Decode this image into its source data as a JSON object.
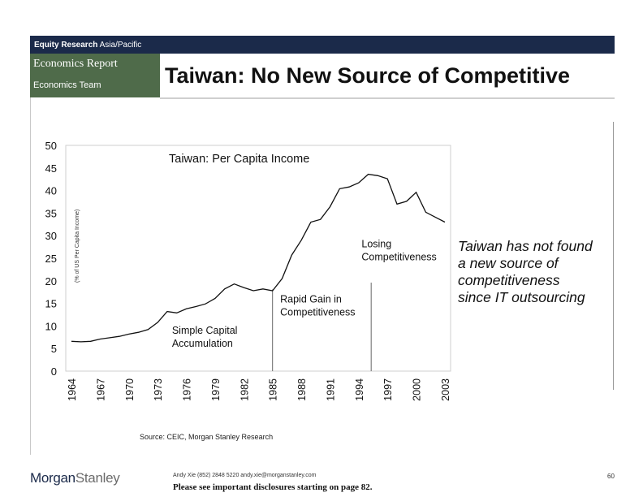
{
  "header": {
    "section": "Equity Research",
    "region": "Asia/Pacific",
    "report_type": "Economics Report",
    "team": "Economics Team",
    "title": "Taiwan: No New Source of Competitive"
  },
  "colors": {
    "header_navy": "#1b2a4a",
    "header_green": "#4f6b4a",
    "line": "#111111"
  },
  "annotation": "Taiwan has not found\na new source of\ncompetitiveness\nsince IT outsourcing",
  "source": "Source: CEIC, Morgan Stanley Research",
  "footer": {
    "logo_first": "Morgan",
    "logo_second": "Stanley",
    "contact": "Andy Xie (852) 2848 5220  andy.xie@morganstanley.com",
    "disclosure": "Please see important disclosures starting on page 82.",
    "page_number": "60"
  },
  "chart_data": {
    "type": "line",
    "title": "Taiwan: Per Capita Income",
    "ylabel": "(% of US Per Capita Income)",
    "xlabel": "",
    "ylim": [
      0,
      50
    ],
    "yticks": [
      0,
      5,
      10,
      15,
      20,
      25,
      30,
      35,
      40,
      45,
      50
    ],
    "xlim": [
      1964,
      2003
    ],
    "xticks": [
      1964,
      1967,
      1970,
      1973,
      1976,
      1979,
      1982,
      1985,
      1988,
      1991,
      1994,
      1997,
      2000,
      2003
    ],
    "grid": false,
    "x": [
      1964,
      1965,
      1966,
      1967,
      1968,
      1969,
      1970,
      1971,
      1972,
      1973,
      1974,
      1975,
      1976,
      1977,
      1978,
      1979,
      1980,
      1981,
      1982,
      1983,
      1984,
      1985,
      1986,
      1987,
      1988,
      1989,
      1990,
      1991,
      1992,
      1993,
      1994,
      1995,
      1996,
      1997,
      1998,
      1999,
      2000,
      2001,
      2002,
      2003
    ],
    "series": [
      {
        "values": [
          6.6,
          6.5,
          6.6,
          7.1,
          7.4,
          7.7,
          8.2,
          8.6,
          9.2,
          10.8,
          13.2,
          12.9,
          13.8,
          14.3,
          14.9,
          16.1,
          18.2,
          19.3,
          18.5,
          17.8,
          18.2,
          17.8,
          20.5,
          25.7,
          29.0,
          33.0,
          33.6,
          36.4,
          40.4,
          40.8,
          41.7,
          43.6,
          43.3,
          42.6,
          37.0,
          37.6,
          39.6,
          35.2,
          34.1,
          33.0
        ]
      }
    ],
    "annotations": [
      {
        "text": "Simple Capital\nAccumulation",
        "x": 1974.5,
        "y": 8.3
      },
      {
        "text": "Rapid Gain in\nCompetitiveness",
        "x": 1985.8,
        "y": 15.2
      },
      {
        "text": "Losing\nCompetitiveness",
        "x": 1994.3,
        "y": 27.4
      }
    ],
    "vlines": [
      {
        "x": 1985,
        "y_top": 18.1
      },
      {
        "x": 1995.3,
        "y_top": 19.6
      }
    ]
  }
}
